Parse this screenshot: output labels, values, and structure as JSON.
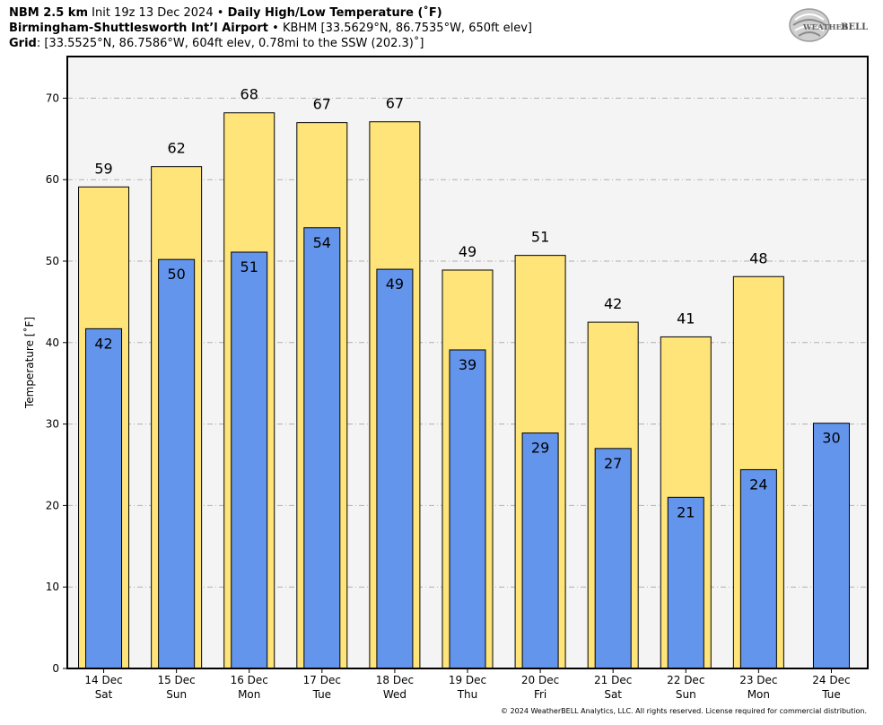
{
  "header": {
    "model": "NBM 2.5 km",
    "init": "Init 19z 13 Dec 2024",
    "sep": "•",
    "product": "Daily High/Low Temperature (˚F)",
    "station_name": "Birmingham-Shuttlesworth Int’l Airport",
    "station_info": "KBHM [33.5629°N, 86.7535°W, 650ft elev]",
    "grid_label": "Grid",
    "grid_info": ": [33.5525°N, 86.7586°W, 604ft elev, 0.78mi to the SSW (202.3)˚]"
  },
  "logo": {
    "text_top": "WEATHER",
    "text_bottom": "BELL"
  },
  "footer": "© 2024 WeatherBELL Analytics, LLC. All rights reserved. License required for commercial distribution.",
  "chart_data": {
    "type": "bar",
    "ylabel": "Temperature [˚F]",
    "ylim": [
      0,
      75
    ],
    "yticks": [
      0,
      10,
      20,
      30,
      40,
      50,
      60,
      70
    ],
    "grid": true,
    "categories": [
      [
        "14 Dec",
        "Sat"
      ],
      [
        "15 Dec",
        "Sun"
      ],
      [
        "16 Dec",
        "Mon"
      ],
      [
        "17 Dec",
        "Tue"
      ],
      [
        "18 Dec",
        "Wed"
      ],
      [
        "19 Dec",
        "Thu"
      ],
      [
        "20 Dec",
        "Fri"
      ],
      [
        "21 Dec",
        "Sat"
      ],
      [
        "22 Dec",
        "Sun"
      ],
      [
        "23 Dec",
        "Mon"
      ],
      [
        "24 Dec",
        "Tue"
      ]
    ],
    "series": [
      {
        "key": "high",
        "color": "#ffe47a",
        "values": [
          59.1,
          61.6,
          68.2,
          67.0,
          67.1,
          48.9,
          50.7,
          42.5,
          40.7,
          48.1,
          null
        ],
        "labels": [
          "59",
          "62",
          "68",
          "67",
          "67",
          "49",
          "51",
          "42",
          "41",
          "48",
          null
        ]
      },
      {
        "key": "low",
        "color": "#6495ed",
        "values": [
          41.7,
          50.2,
          51.1,
          54.1,
          49.0,
          39.1,
          28.9,
          27.0,
          21.0,
          24.4,
          30.1
        ],
        "labels": [
          "42",
          "50",
          "51",
          "54",
          "49",
          "39",
          "29",
          "27",
          "21",
          "24",
          "30"
        ]
      }
    ]
  }
}
